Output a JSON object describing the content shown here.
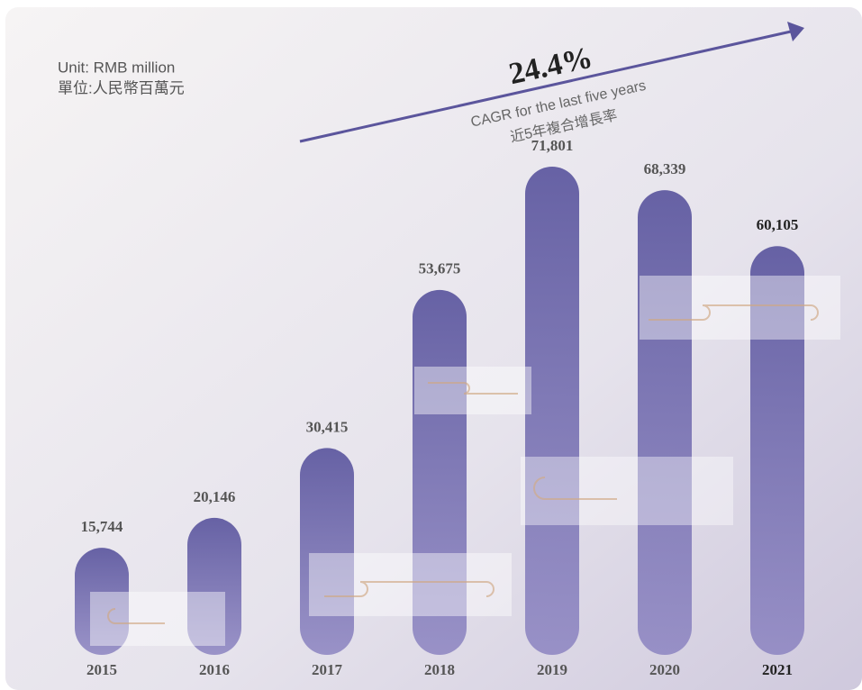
{
  "chart_data": {
    "type": "bar",
    "unit_lines": [
      "Unit: RMB million",
      "單位:人民幣百萬元"
    ],
    "cagr": {
      "value_label": "24.4%",
      "caption": [
        "CAGR for the last five years",
        "近5年複合增長率"
      ]
    },
    "categories": [
      "2015",
      "2016",
      "2017",
      "2018",
      "2019",
      "2020",
      "2021"
    ],
    "values": [
      15744,
      20146,
      30415,
      53675,
      71801,
      68339,
      60105
    ],
    "value_labels": [
      "15,744",
      "20,146",
      "30,415",
      "53,675",
      "71,801",
      "68,339",
      "60,105"
    ],
    "color": "#5b569e"
  }
}
